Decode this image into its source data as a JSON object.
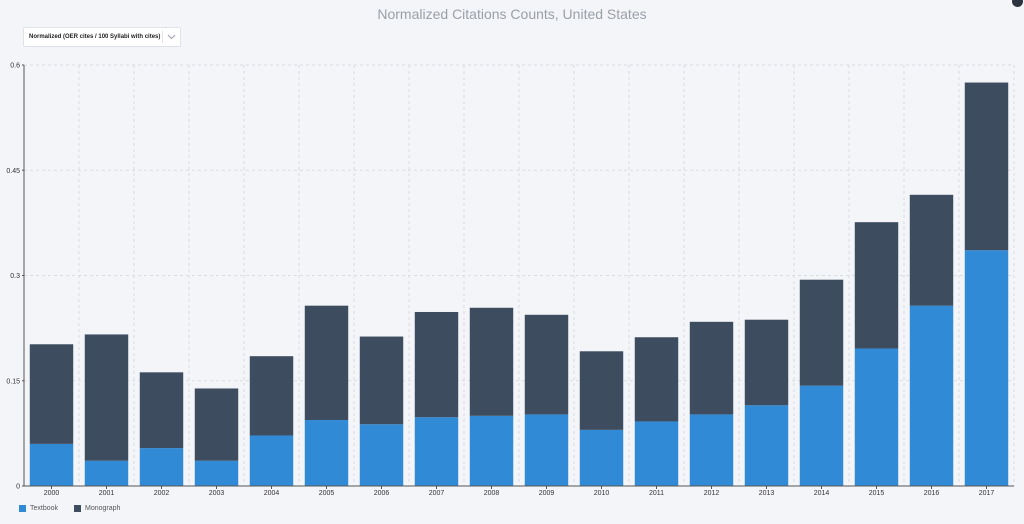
{
  "header": {
    "title": "Normalized Citations Counts, United States"
  },
  "controls": {
    "metric_selected": "Normalized (OER cites / 100 Syllabi with cites)"
  },
  "chart_data": {
    "type": "bar",
    "stacked": true,
    "title": "Normalized Citations Counts, United States",
    "categories": [
      "2000",
      "2001",
      "2002",
      "2003",
      "2004",
      "2005",
      "2006",
      "2007",
      "2008",
      "2009",
      "2010",
      "2011",
      "2012",
      "2013",
      "2014",
      "2015",
      "2016",
      "2017"
    ],
    "series": [
      {
        "name": "Textbook",
        "color": "#318ad6",
        "values": [
          0.06,
          0.036,
          0.054,
          0.036,
          0.072,
          0.094,
          0.088,
          0.098,
          0.1,
          0.102,
          0.08,
          0.092,
          0.102,
          0.115,
          0.143,
          0.196,
          0.257,
          0.336
        ]
      },
      {
        "name": "Monograph",
        "color": "#3d4c5f",
        "values": [
          0.142,
          0.18,
          0.108,
          0.103,
          0.113,
          0.163,
          0.125,
          0.15,
          0.154,
          0.142,
          0.112,
          0.12,
          0.132,
          0.122,
          0.151,
          0.18,
          0.158,
          0.239
        ]
      }
    ],
    "yticks": [
      0,
      0.15,
      0.3,
      0.45,
      0.6
    ],
    "ylim": [
      0,
      0.6
    ],
    "grid": true,
    "legend_position": "bottom-left"
  }
}
